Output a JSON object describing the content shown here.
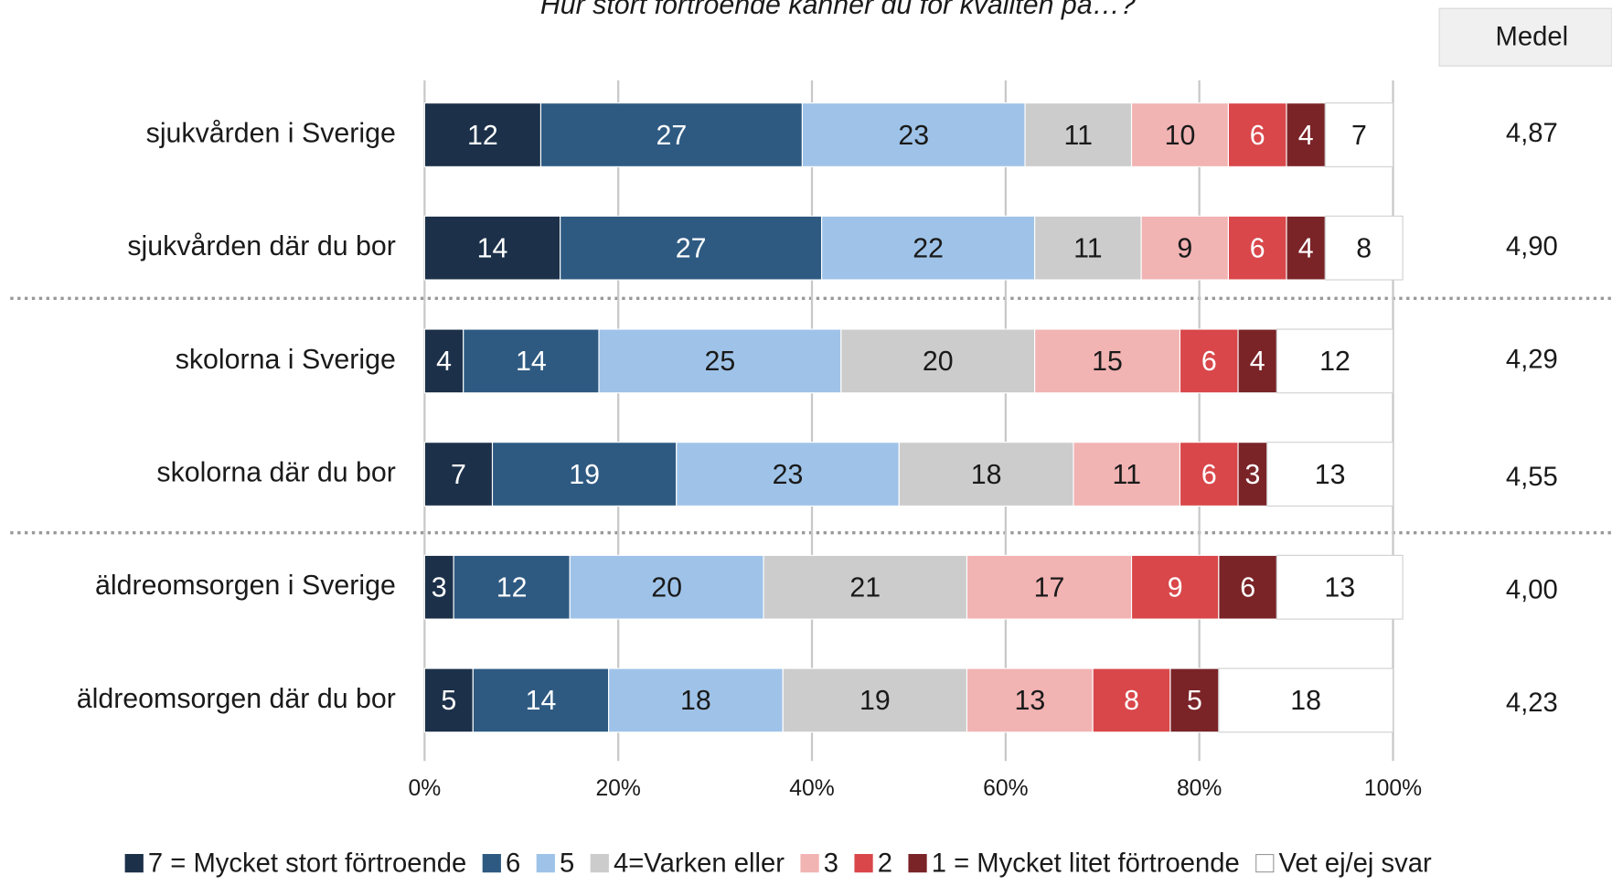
{
  "chart_data": {
    "type": "stacked-bar-horizontal",
    "title": "Hur stort förtroende känner du för kvaliten på…?",
    "categories": [
      "sjukvården i Sverige",
      "sjukvården där du bor",
      "skolorna i Sverige",
      "skolorna där du bor",
      "äldreomsorgen i Sverige",
      "äldreomsorgen där du bor"
    ],
    "series": [
      {
        "name": "7 = Mycket stort förtroende",
        "color": "#1c3049",
        "values": [
          12,
          14,
          4,
          7,
          3,
          5
        ]
      },
      {
        "name": "6",
        "color": "#2e5a82",
        "values": [
          27,
          27,
          14,
          19,
          12,
          14
        ]
      },
      {
        "name": "5",
        "color": "#9fc3e8",
        "values": [
          23,
          22,
          25,
          23,
          20,
          18
        ]
      },
      {
        "name": "4=Varken eller",
        "color": "#cccccc",
        "values": [
          11,
          11,
          20,
          18,
          21,
          19
        ]
      },
      {
        "name": "3",
        "color": "#f2b3b3",
        "values": [
          10,
          9,
          15,
          11,
          17,
          13
        ]
      },
      {
        "name": "2",
        "color": "#d9474a",
        "values": [
          6,
          6,
          6,
          6,
          9,
          8
        ]
      },
      {
        "name": "1 = Mycket litet förtroende",
        "color": "#7a2428",
        "values": [
          4,
          4,
          4,
          3,
          6,
          5
        ]
      },
      {
        "name": "Vet ej/ej svar",
        "color": "#ffffff",
        "values": [
          7,
          8,
          12,
          13,
          13,
          18
        ]
      }
    ],
    "xlim": [
      0,
      100
    ],
    "xticks": [
      {
        "value": 0,
        "label": "0%"
      },
      {
        "value": 20,
        "label": "20%"
      },
      {
        "value": 40,
        "label": "40%"
      },
      {
        "value": 60,
        "label": "60%"
      },
      {
        "value": 80,
        "label": "80%"
      },
      {
        "value": 100,
        "label": "100%"
      }
    ],
    "grid": true,
    "mean_title": "Medel",
    "mean": [
      4.87,
      4.9,
      4.29,
      4.55,
      4.0,
      4.23
    ],
    "mean_labels": [
      "4,87",
      "4,90",
      "4,29",
      "4,55",
      "4,00",
      "4,23"
    ],
    "legend": "bottom"
  }
}
